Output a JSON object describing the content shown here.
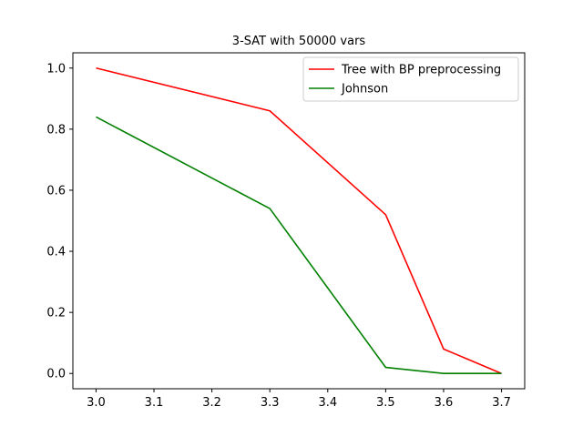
{
  "chart_data": {
    "type": "line",
    "title": "3-SAT with 50000 vars",
    "xlabel": "",
    "ylabel": "",
    "x": [
      3.0,
      3.3,
      3.5,
      3.6,
      3.7
    ],
    "xlim": [
      2.96,
      3.74
    ],
    "ylim": [
      -0.05,
      1.05
    ],
    "xticks": [
      3.0,
      3.1,
      3.2,
      3.3,
      3.4,
      3.5,
      3.6,
      3.7
    ],
    "xtick_labels": [
      "3.0",
      "3.1",
      "3.2",
      "3.3",
      "3.4",
      "3.5",
      "3.6",
      "3.7"
    ],
    "yticks": [
      0.0,
      0.2,
      0.4,
      0.6,
      0.8,
      1.0
    ],
    "ytick_labels": [
      "0.0",
      "0.2",
      "0.4",
      "0.6",
      "0.8",
      "1.0"
    ],
    "grid": false,
    "legend_position": "top-right",
    "series": [
      {
        "name": "Tree with BP preprocessing",
        "color": "#ff0000",
        "values": [
          1.0,
          0.86,
          0.52,
          0.08,
          0.0
        ]
      },
      {
        "name": "Johnson",
        "color": "#008000",
        "values": [
          0.84,
          0.54,
          0.02,
          0.0,
          0.0
        ]
      }
    ]
  }
}
